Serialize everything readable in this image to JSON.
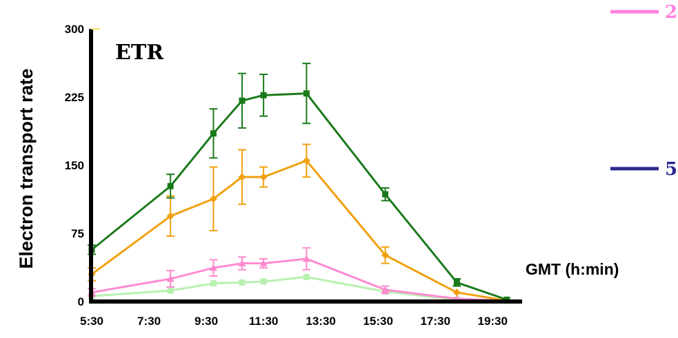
{
  "chart_data": {
    "type": "line",
    "title": "ETR",
    "ylabel": "Electron transport rate",
    "xlabel": "GMT (h:min)",
    "x_ticks": [
      "5:30",
      "7:30",
      "9:30",
      "11:30",
      "13:30",
      "15:30",
      "17:30",
      "19:30"
    ],
    "y_ticks": [
      0,
      75,
      150,
      225,
      300
    ],
    "ylim": [
      0,
      300
    ],
    "xlim_hours": [
      5.5,
      20
    ],
    "grid": false,
    "legend_entries": [
      {
        "label": "2",
        "color": "#ff80e0"
      },
      {
        "label": "5",
        "color": "#2a2a90"
      }
    ],
    "series": [
      {
        "color": "#1a7a1a",
        "marker": "square",
        "x": [
          5.5,
          8.25,
          9.75,
          10.75,
          11.5,
          13.0,
          15.75,
          18.25,
          20.0
        ],
        "y": [
          57,
          127,
          185,
          221,
          227,
          229,
          118,
          21,
          2
        ],
        "err": [
          5,
          13,
          27,
          30,
          23,
          33,
          7,
          4,
          0
        ]
      },
      {
        "color": "#f0a010",
        "marker": "diamond",
        "x": [
          5.5,
          8.25,
          9.75,
          10.75,
          11.5,
          13.0,
          15.75,
          18.25,
          20.0
        ],
        "y": [
          30,
          94,
          113,
          137,
          137,
          155,
          51,
          10,
          1
        ],
        "err": [
          7,
          22,
          35,
          30,
          11,
          18,
          9,
          0,
          0
        ]
      },
      {
        "color": "#ff8ad0",
        "marker": "triangle",
        "x": [
          5.5,
          8.25,
          9.75,
          10.75,
          11.5,
          13.0,
          15.75,
          18.25,
          20.0
        ],
        "y": [
          10,
          25,
          37,
          42,
          42,
          47,
          13,
          3,
          1
        ],
        "err": [
          4,
          9,
          9,
          7,
          5,
          12,
          4,
          0,
          0
        ]
      },
      {
        "color": "#b8f0b0",
        "marker": "square",
        "x": [
          5.5,
          8.25,
          9.75,
          10.75,
          11.5,
          13.0,
          15.75,
          18.25,
          20.0
        ],
        "y": [
          6,
          12,
          20,
          21,
          22,
          27,
          11,
          2,
          1
        ],
        "err": [
          0,
          0,
          0,
          0,
          0,
          0,
          0,
          0,
          0
        ]
      }
    ]
  }
}
